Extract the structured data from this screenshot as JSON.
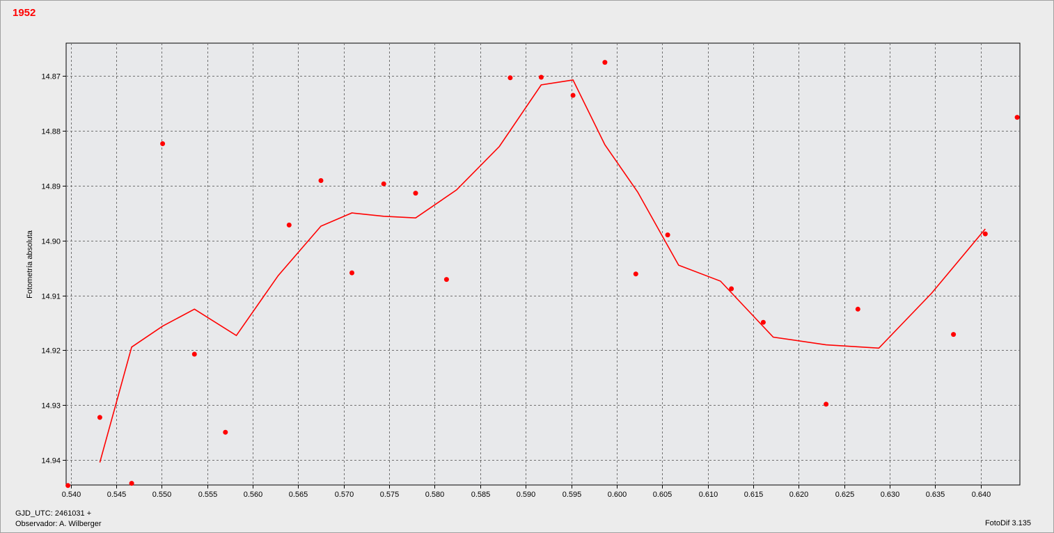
{
  "header": {
    "title": "1952"
  },
  "footer": {
    "gjd_label": "GJD_UTC: 2461031 +",
    "observer_label": "Observador: A. Wilberger",
    "software_label": "FotoDif 3.135"
  },
  "colors": {
    "series": "#ff0000",
    "grid": "#707070",
    "plot_bg": "#e8e9eb"
  },
  "chart_data": {
    "type": "scatter",
    "title": "",
    "xlabel": "",
    "ylabel": "Fotometría absoluta",
    "xlim": [
      0.5395,
      0.6443
    ],
    "ylim": [
      14.9445,
      14.8641
    ],
    "y_inverted": true,
    "grid": true,
    "xticks": [
      0.54,
      0.545,
      0.55,
      0.555,
      0.56,
      0.565,
      0.57,
      0.575,
      0.58,
      0.585,
      0.59,
      0.595,
      0.6,
      0.605,
      0.61,
      0.615,
      0.62,
      0.625,
      0.63,
      0.635,
      0.64
    ],
    "xtick_labels": [
      "0.540",
      "0.545",
      "0.550",
      "0.555",
      "0.560",
      "0.565",
      "0.570",
      "0.575",
      "0.580",
      "0.585",
      "0.590",
      "0.595",
      "0.600",
      "0.605",
      "0.610",
      "0.615",
      "0.620",
      "0.625",
      "0.630",
      "0.635",
      "0.640"
    ],
    "yticks": [
      14.87,
      14.88,
      14.89,
      14.9,
      14.91,
      14.92,
      14.93,
      14.94
    ],
    "ytick_labels": [
      "14.87",
      "14.88",
      "14.89",
      "14.90",
      "14.91",
      "14.92",
      "14.93",
      "14.94"
    ],
    "points": {
      "x": [
        0.5397,
        0.5432,
        0.5467,
        0.5501,
        0.5536,
        0.557,
        0.564,
        0.5675,
        0.5709,
        0.5744,
        0.5779,
        0.5813,
        0.5883,
        0.5917,
        0.5952,
        0.5987,
        0.6021,
        0.6056,
        0.6126,
        0.6161,
        0.623,
        0.6265,
        0.637,
        0.6405,
        0.644
      ],
      "y": [
        14.9446,
        14.9322,
        14.9442,
        14.8824,
        14.9207,
        14.9349,
        14.8972,
        14.8891,
        14.9059,
        14.8897,
        14.8914,
        14.9071,
        14.8704,
        14.8703,
        14.8736,
        14.8676,
        14.9061,
        14.899,
        14.9088,
        14.9149,
        14.9298,
        14.9125,
        14.9171,
        14.8988,
        14.8776
      ]
    },
    "fit_line": {
      "x": [
        0.5432,
        0.5467,
        0.5501,
        0.5536,
        0.5582,
        0.5628,
        0.5675,
        0.5709,
        0.5744,
        0.5779,
        0.5824,
        0.5871,
        0.5917,
        0.5952,
        0.5987,
        0.6023,
        0.6068,
        0.6114,
        0.6172,
        0.623,
        0.6288,
        0.6346,
        0.6405
      ],
      "y": [
        14.9404,
        14.9194,
        14.9156,
        14.9125,
        14.9173,
        14.9064,
        14.8974,
        14.895,
        14.8956,
        14.8959,
        14.8908,
        14.8829,
        14.8717,
        14.8708,
        14.8826,
        14.8912,
        14.9045,
        14.9074,
        14.9176,
        14.919,
        14.9196,
        14.9096,
        14.8979
      ]
    }
  }
}
